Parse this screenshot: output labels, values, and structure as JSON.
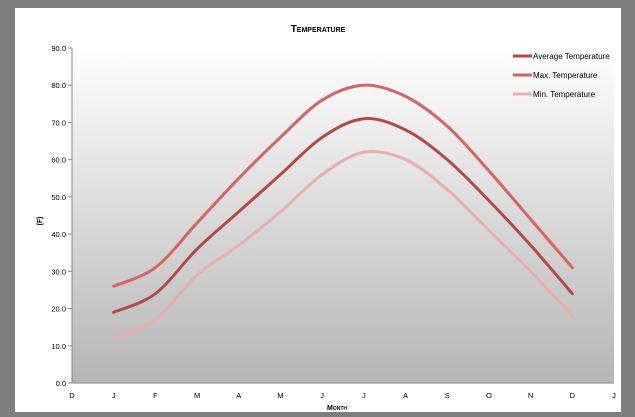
{
  "chart_data": {
    "type": "line",
    "title": "Temperature",
    "xlabel": "Month",
    "ylabel": "(F)",
    "x_ticks": [
      "D",
      "J",
      "F",
      "M",
      "A",
      "M",
      "J",
      "J",
      "A",
      "S",
      "O",
      "N",
      "D",
      "J"
    ],
    "categories": [
      "J",
      "F",
      "M",
      "A",
      "M",
      "J",
      "J",
      "A",
      "S",
      "O",
      "N",
      "D"
    ],
    "ylim": [
      0,
      90
    ],
    "y_ticks": [
      "0.0",
      "10.0",
      "20.0",
      "30.0",
      "40.0",
      "50.0",
      "60.0",
      "70.0",
      "80.0",
      "90.0"
    ],
    "grid": false,
    "legend_position": "top-right",
    "series": [
      {
        "name": "Average Temperature",
        "color": "#b34a4a",
        "values": [
          19,
          24,
          36,
          46,
          56,
          66,
          71,
          68,
          60,
          49,
          37,
          24
        ]
      },
      {
        "name": "Max. Temperature",
        "color": "#d66464",
        "values": [
          26,
          31,
          43,
          55,
          66,
          76,
          80,
          77,
          69,
          57,
          44,
          31
        ]
      },
      {
        "name": "Min. Temperature",
        "color": "#e8b0ac",
        "values": [
          12,
          17,
          29,
          37,
          46,
          56,
          62,
          60,
          52,
          41,
          30,
          18
        ]
      }
    ]
  }
}
